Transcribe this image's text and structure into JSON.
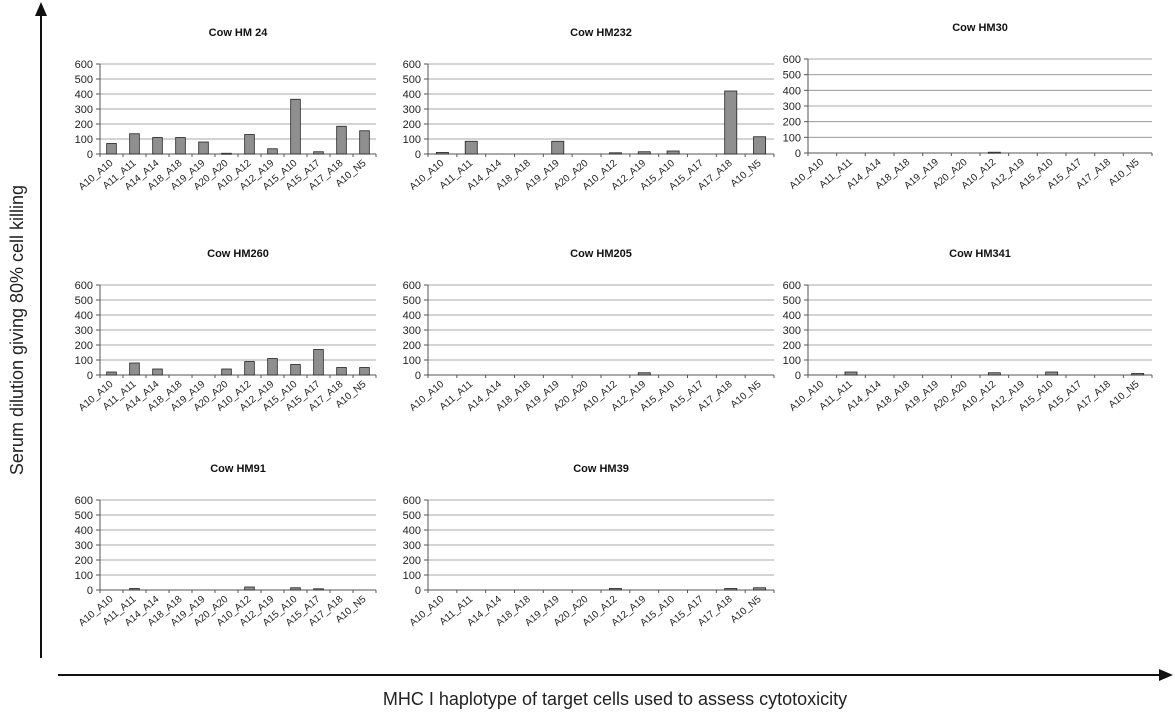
{
  "figure": {
    "ylabel": "Serum dilution giving 80% cell killing",
    "xlabel": "MHC I haplotype of target cells used to assess cytotoxicity"
  },
  "chart_data": [
    {
      "type": "bar",
      "title": "Cow HM 24",
      "categories": [
        "A10_A10",
        "A11_A11",
        "A14_A14",
        "A18_A18",
        "A19_A19",
        "A20_A20",
        "A10_A12",
        "A12_A19",
        "A15_A10",
        "A15_A17",
        "A17_A18",
        "A10_N5"
      ],
      "values": [
        70,
        135,
        110,
        110,
        80,
        5,
        130,
        35,
        365,
        15,
        185,
        155
      ],
      "yticks": [
        "0",
        "100",
        "200",
        "300",
        "400",
        "500",
        "600"
      ],
      "ylim": [
        0,
        600
      ],
      "grid": true
    },
    {
      "type": "bar",
      "title": "Cow HM232",
      "categories": [
        "A10_A10",
        "A11_A11",
        "A14_A14",
        "A18_A18",
        "A19_A19",
        "A20_A20",
        "A10_A12",
        "A12_A19",
        "A15_A10",
        "A15_A17",
        "A17_A18",
        "A10_N5"
      ],
      "values": [
        10,
        85,
        0,
        0,
        85,
        0,
        8,
        15,
        20,
        0,
        420,
        115
      ],
      "yticks": [
        "0",
        "100",
        "200",
        "300",
        "400",
        "500",
        "600"
      ],
      "ylim": [
        0,
        600
      ],
      "grid": true
    },
    {
      "type": "bar",
      "title": "Cow HM30",
      "categories": [
        "A10_A10",
        "A11_A11",
        "A14_A14",
        "A18_A18",
        "A19_A19",
        "A20_A20",
        "A10_A12",
        "A12_A19",
        "A15_A10",
        "A15_A17",
        "A17_A18",
        "A10_N5"
      ],
      "values": [
        0,
        0,
        0,
        0,
        0,
        0,
        5,
        0,
        0,
        0,
        0,
        0
      ],
      "yticks": [
        "0",
        "100",
        "200",
        "300",
        "400",
        "500",
        "600"
      ],
      "ylim": [
        0,
        600
      ],
      "grid": true
    },
    {
      "type": "bar",
      "title": "Cow HM260",
      "categories": [
        "A10_A10",
        "A11_A11",
        "A14_A14",
        "A18_A18",
        "A19_A19",
        "A20_A20",
        "A10_A12",
        "A12_A19",
        "A15_A10",
        "A15_A17",
        "A17_A18",
        "A10_N5"
      ],
      "values": [
        20,
        80,
        40,
        0,
        0,
        40,
        90,
        110,
        70,
        170,
        50,
        50
      ],
      "yticks": [
        "0",
        "100",
        "200",
        "300",
        "400",
        "500",
        "600"
      ],
      "ylim": [
        0,
        600
      ],
      "grid": true
    },
    {
      "type": "bar",
      "title": "Cow HM205",
      "categories": [
        "A10_A10",
        "A11_A11",
        "A14_A14",
        "A18_A18",
        "A19_A19",
        "A20_A20",
        "A10_A12",
        "A12_A19",
        "A15_A10",
        "A15_A17",
        "A17_A18",
        "A10_N5"
      ],
      "values": [
        0,
        0,
        0,
        0,
        0,
        0,
        0,
        15,
        0,
        0,
        0,
        0
      ],
      "yticks": [
        "0",
        "100",
        "200",
        "300",
        "400",
        "500",
        "600"
      ],
      "ylim": [
        0,
        600
      ],
      "grid": true
    },
    {
      "type": "bar",
      "title": "Cow HM341",
      "categories": [
        "A10_A10",
        "A11_A11",
        "A14_A14",
        "A18_A18",
        "A19_A19",
        "A20_A20",
        "A10_A12",
        "A12_A19",
        "A15_A10",
        "A15_A17",
        "A17_A18",
        "A10_N5"
      ],
      "values": [
        0,
        20,
        0,
        0,
        0,
        0,
        15,
        0,
        20,
        0,
        0,
        10
      ],
      "yticks": [
        "0",
        "100",
        "200",
        "300",
        "400",
        "500",
        "600"
      ],
      "ylim": [
        0,
        600
      ],
      "grid": true
    },
    {
      "type": "bar",
      "title": "Cow HM91",
      "categories": [
        "A10_A10",
        "A11_A11",
        "A14_A14",
        "A18_A18",
        "A19_A19",
        "A20_A20",
        "A10_A12",
        "A12_A19",
        "A15_A10",
        "A15_A17",
        "A17_A18",
        "A10_N5"
      ],
      "values": [
        0,
        10,
        0,
        0,
        0,
        0,
        20,
        0,
        15,
        8,
        0,
        0
      ],
      "yticks": [
        "0",
        "100",
        "200",
        "300",
        "400",
        "500",
        "600"
      ],
      "ylim": [
        0,
        600
      ],
      "grid": true
    },
    {
      "type": "bar",
      "title": "Cow HM39",
      "categories": [
        "A10_A10",
        "A11_A11",
        "A14_A14",
        "A18_A18",
        "A19_A19",
        "A20_A20",
        "A10_A12",
        "A12_A19",
        "A15_A10",
        "A15_A17",
        "A17_A18",
        "A10_N5"
      ],
      "values": [
        0,
        0,
        0,
        0,
        0,
        0,
        10,
        0,
        0,
        0,
        10,
        15
      ],
      "yticks": [
        "0",
        "100",
        "200",
        "300",
        "400",
        "500",
        "600"
      ],
      "ylim": [
        0,
        600
      ],
      "grid": true
    }
  ]
}
